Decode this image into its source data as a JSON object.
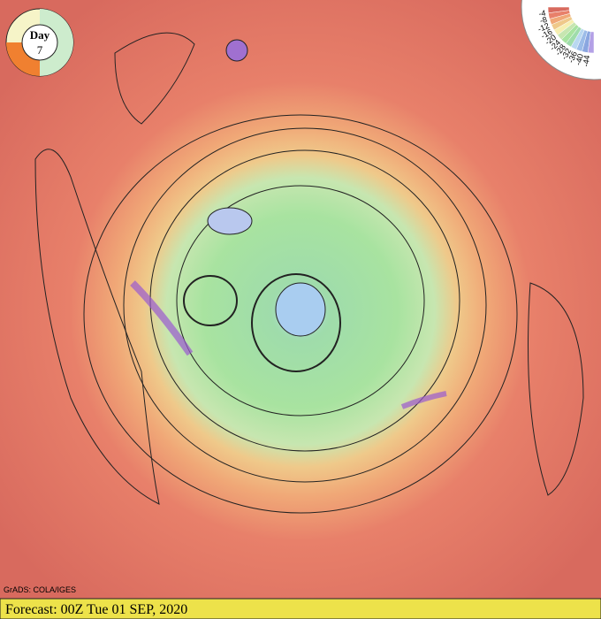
{
  "day": {
    "label": "Day",
    "number": "7"
  },
  "legend": {
    "labels": [
      "-4",
      "-8",
      "-12",
      "-16",
      "-20",
      "-24",
      "-28",
      "-32",
      "-36",
      "-40",
      "-44"
    ]
  },
  "credit": "GrADS: COLA/IGES",
  "footer": "Forecast: 00Z Tue 01 SEP, 2020"
}
